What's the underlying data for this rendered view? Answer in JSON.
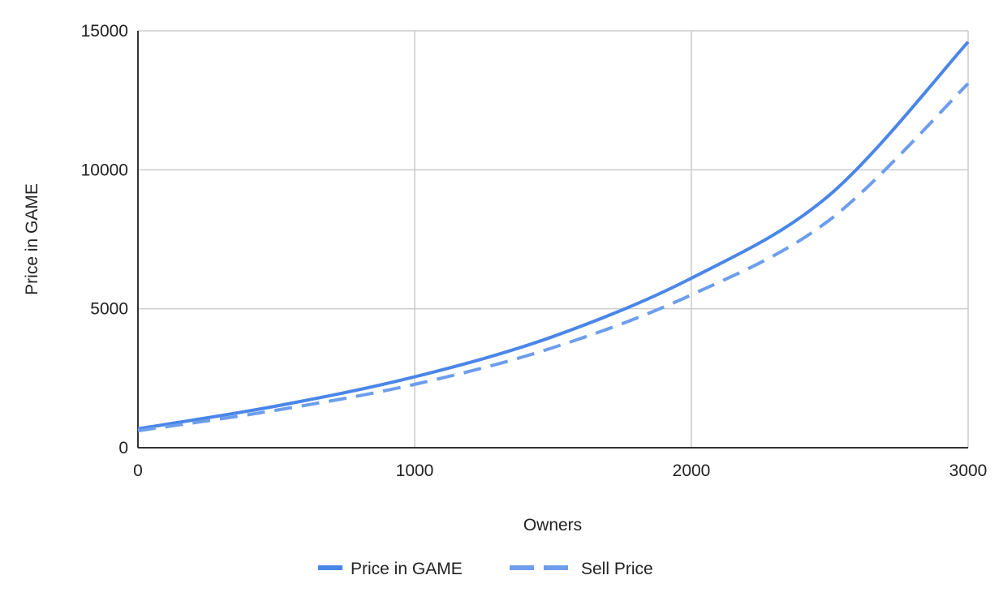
{
  "chart_data": {
    "type": "line",
    "title": "",
    "xlabel": "Owners",
    "ylabel": "Price in GAME",
    "xlim": [
      0,
      3000
    ],
    "ylim": [
      0,
      15000
    ],
    "x_ticks": [
      "0",
      "1000",
      "2000",
      "3000"
    ],
    "y_ticks": [
      "0",
      "5000",
      "10000",
      "15000"
    ],
    "grid": true,
    "legend_position": "bottom",
    "series": [
      {
        "name": "Price in GAME",
        "color": "#4a86e8",
        "dash": "solid",
        "points": [
          [
            0,
            680
          ],
          [
            500,
            1500
          ],
          [
            1000,
            2550
          ],
          [
            1500,
            4000
          ],
          [
            2000,
            6100
          ],
          [
            2500,
            9100
          ],
          [
            3000,
            14600
          ]
        ]
      },
      {
        "name": "Sell Price",
        "color": "#6d9eeb",
        "dash": "dashed",
        "points": [
          [
            0,
            610
          ],
          [
            500,
            1350
          ],
          [
            1000,
            2280
          ],
          [
            1500,
            3600
          ],
          [
            2000,
            5500
          ],
          [
            2500,
            8200
          ],
          [
            3000,
            13100
          ]
        ]
      }
    ]
  }
}
